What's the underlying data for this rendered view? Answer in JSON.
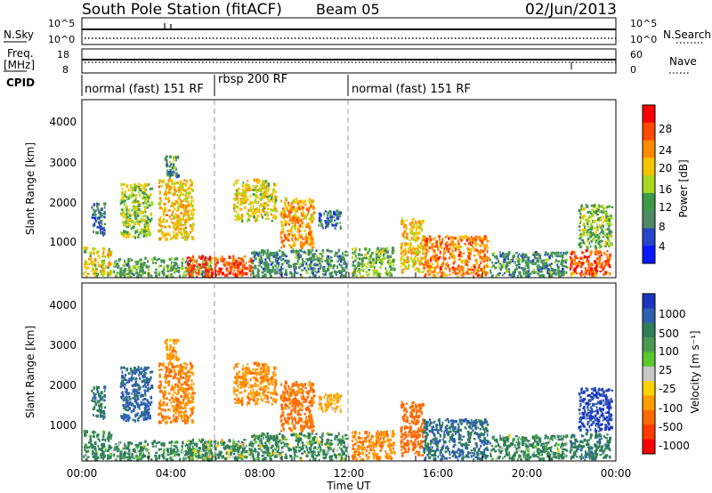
{
  "header": {
    "title": "South Pole Station (fitACF)",
    "beam": "Beam 05",
    "date": "02/Jun/2013"
  },
  "top_panels": {
    "nsky_label": "N.Sky",
    "nsearch_label": "N.Search",
    "nsky_ticks": [
      "10^5",
      "10^0"
    ],
    "nsearch_ticks": [
      "10^5",
      "10^0"
    ],
    "freq_label_1": "Freq.",
    "freq_label_2": "[MHz]",
    "freq_ticks": [
      "18",
      "8"
    ],
    "nave_label": "Nave",
    "nave_ticks": [
      "60",
      "0"
    ],
    "cpid_label": "CPID",
    "cpid_segments": [
      {
        "label": "normal (fast) 151 RF",
        "start_hour": 0,
        "end_hour": 6
      },
      {
        "label": "rbsp 200 RF",
        "start_hour": 6,
        "end_hour": 12
      },
      {
        "label": "normal (fast) 151 RF",
        "start_hour": 12,
        "end_hour": 24
      }
    ]
  },
  "colorbars": {
    "power": {
      "label": "Power [dB]",
      "ticks": [
        "28",
        "24",
        "20",
        "16",
        "12",
        "8",
        "4"
      ],
      "colors": [
        "#ff0000",
        "#ff4a00",
        "#ff8a00",
        "#f5c400",
        "#a8d81e",
        "#3d9a4a",
        "#4e8a62",
        "#2646c8",
        "#0a16ff"
      ]
    },
    "velocity": {
      "label": "Velocity [m s⁻¹]",
      "ticks": [
        "1000",
        "500",
        "100",
        "25",
        "-25",
        "-100",
        "-500",
        "-1000"
      ],
      "colors": [
        "#1c34c0",
        "#2f5fb0",
        "#2f7e57",
        "#4a9a56",
        "#58c82e",
        "#c7c7c7",
        "#ffd100",
        "#ff9c00",
        "#ff6a00",
        "#ff3a00",
        "#ff0000"
      ]
    }
  },
  "chart_data": {
    "type": "heatmap",
    "panels": [
      "Power",
      "Velocity"
    ],
    "xlabel": "Time UT",
    "ylabel": "Slant Range [km]",
    "xlim": [
      0,
      24
    ],
    "ylim": [
      180,
      4500
    ],
    "x_tick_labels": [
      "00:00",
      "04:00",
      "08:00",
      "12:00",
      "16:00",
      "20:00",
      "00:00"
    ],
    "y_tick_labels": [
      "1000",
      "2000",
      "3000",
      "4000"
    ],
    "mode_change_hours": [
      6,
      12
    ],
    "scatter_regions": [
      {
        "t0": 0.05,
        "t1": 1.3,
        "r0": 200,
        "r1": 900,
        "power": 18,
        "velocity": 150
      },
      {
        "t0": 0.4,
        "t1": 1.0,
        "r0": 1200,
        "r1": 2000,
        "power": 8,
        "velocity": 200
      },
      {
        "t0": 1.7,
        "t1": 3.1,
        "r0": 1150,
        "r1": 2450,
        "power": 16,
        "velocity": 400
      },
      {
        "t0": 3.4,
        "t1": 5.0,
        "r0": 1100,
        "r1": 2550,
        "power": 20,
        "velocity": -300
      },
      {
        "t0": 3.7,
        "t1": 4.3,
        "r0": 2600,
        "r1": 3150,
        "power": 10,
        "velocity": -200
      },
      {
        "t0": 1.4,
        "t1": 5.8,
        "r0": 200,
        "r1": 650,
        "power": 12,
        "velocity": 120
      },
      {
        "t0": 4.7,
        "t1": 7.6,
        "r0": 200,
        "r1": 700,
        "power": 27,
        "velocity": 80
      },
      {
        "t0": 6.8,
        "t1": 8.7,
        "r0": 1550,
        "r1": 2550,
        "power": 18,
        "velocity": -250
      },
      {
        "t0": 8.9,
        "t1": 10.4,
        "r0": 900,
        "r1": 2100,
        "power": 22,
        "velocity": -400
      },
      {
        "t0": 7.6,
        "t1": 11.9,
        "r0": 200,
        "r1": 850,
        "power": 10,
        "velocity": 100
      },
      {
        "t0": 10.6,
        "t1": 11.6,
        "r0": 1350,
        "r1": 1800,
        "power": 8,
        "velocity": -150
      },
      {
        "t0": 12.1,
        "t1": 14.0,
        "r0": 200,
        "r1": 900,
        "power": 14,
        "velocity": -300
      },
      {
        "t0": 14.3,
        "t1": 15.3,
        "r0": 300,
        "r1": 1600,
        "power": 20,
        "velocity": -600
      },
      {
        "t0": 15.3,
        "t1": 18.2,
        "r0": 200,
        "r1": 1200,
        "power": 24,
        "velocity": 300
      },
      {
        "t0": 18.3,
        "t1": 21.8,
        "r0": 200,
        "r1": 800,
        "power": 10,
        "velocity": 120
      },
      {
        "t0": 21.9,
        "t1": 23.7,
        "r0": 200,
        "r1": 850,
        "power": 26,
        "velocity": 200
      },
      {
        "t0": 22.3,
        "t1": 23.8,
        "r0": 900,
        "r1": 1950,
        "power": 14,
        "velocity": 800
      }
    ]
  }
}
